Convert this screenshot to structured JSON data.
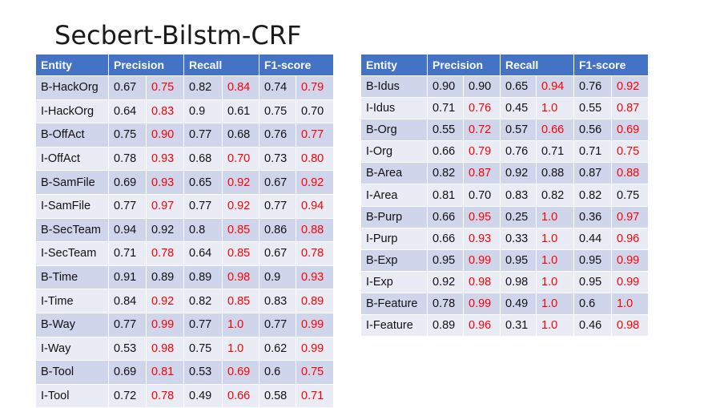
{
  "title": "Secbert-Bilstm-CRF",
  "colors": {
    "header": "#4472c4",
    "row_dark": "#cfd5ea",
    "row_light": "#e9ebf5",
    "highlight": "#ff0000"
  },
  "left_table": {
    "headers": [
      "Entity",
      "Precision",
      "Recall",
      "F1-score"
    ],
    "rows": [
      {
        "entity": "B-HackOrg",
        "values": [
          "0.67",
          "0.75",
          "0.82",
          "0.84",
          "0.74",
          "0.79"
        ],
        "highlight": [
          false,
          true,
          false,
          true,
          false,
          true
        ]
      },
      {
        "entity": "I-HackOrg",
        "values": [
          "0.64",
          "0.83",
          "0.9",
          "0.61",
          "0.75",
          "0.70"
        ],
        "highlight": [
          false,
          true,
          false,
          false,
          false,
          false
        ]
      },
      {
        "entity": "B-OffAct",
        "values": [
          "0.75",
          "0.90",
          "0.77",
          "0.68",
          "0.76",
          "0.77"
        ],
        "highlight": [
          false,
          true,
          false,
          false,
          false,
          true
        ]
      },
      {
        "entity": "I-OffAct",
        "values": [
          "0.78",
          "0.93",
          "0.68",
          "0.70",
          "0.73",
          "0.80"
        ],
        "highlight": [
          false,
          true,
          false,
          true,
          false,
          true
        ]
      },
      {
        "entity": "B-SamFile",
        "values": [
          "0.69",
          "0.93",
          "0.65",
          "0.92",
          "0.67",
          "0.92"
        ],
        "highlight": [
          false,
          true,
          false,
          true,
          false,
          true
        ]
      },
      {
        "entity": "I-SamFile",
        "values": [
          "0.77",
          "0.97",
          "0.77",
          "0.92",
          "0.77",
          "0.94"
        ],
        "highlight": [
          false,
          true,
          false,
          true,
          false,
          true
        ]
      },
      {
        "entity": "B-SecTeam",
        "values": [
          "0.94",
          "0.92",
          "0.8",
          "0.85",
          "0.86",
          "0.88"
        ],
        "highlight": [
          false,
          false,
          false,
          true,
          false,
          true
        ]
      },
      {
        "entity": "I-SecTeam",
        "values": [
          "0.71",
          "0.78",
          "0.64",
          "0.85",
          "0.67",
          "0.78"
        ],
        "highlight": [
          false,
          true,
          false,
          true,
          false,
          true
        ]
      },
      {
        "entity": "B-Time",
        "values": [
          "0.91",
          "0.89",
          "0.89",
          "0.98",
          "0.9",
          "0.93"
        ],
        "highlight": [
          false,
          false,
          false,
          true,
          false,
          true
        ]
      },
      {
        "entity": "I-Time",
        "values": [
          "0.84",
          "0.92",
          "0.82",
          "0.85",
          "0.83",
          "0.89"
        ],
        "highlight": [
          false,
          true,
          false,
          true,
          false,
          true
        ]
      },
      {
        "entity": "B-Way",
        "values": [
          "0.77",
          "0.99",
          "0.77",
          "1.0",
          "0.77",
          "0.99"
        ],
        "highlight": [
          false,
          true,
          false,
          true,
          false,
          true
        ]
      },
      {
        "entity": "I-Way",
        "values": [
          "0.53",
          "0.98",
          "0.75",
          "1.0",
          "0.62",
          "0.99"
        ],
        "highlight": [
          false,
          true,
          false,
          true,
          false,
          true
        ]
      },
      {
        "entity": "B-Tool",
        "values": [
          "0.69",
          "0.81",
          "0.53",
          "0.69",
          "0.6",
          "0.75"
        ],
        "highlight": [
          false,
          true,
          false,
          true,
          false,
          true
        ]
      },
      {
        "entity": "I-Tool",
        "values": [
          "0.72",
          "0.78",
          "0.49",
          "0.66",
          "0.58",
          "0.71"
        ],
        "highlight": [
          false,
          true,
          false,
          true,
          false,
          true
        ]
      }
    ]
  },
  "right_table": {
    "headers": [
      "Entity",
      "Precision",
      "Recall",
      "F1-score"
    ],
    "rows": [
      {
        "entity": "B-Idus",
        "values": [
          "0.90",
          "0.90",
          "0.65",
          "0.94",
          "0.76",
          "0.92"
        ],
        "highlight": [
          false,
          false,
          false,
          true,
          false,
          true
        ]
      },
      {
        "entity": "I-Idus",
        "values": [
          "0.71",
          "0.76",
          "0.45",
          "1.0",
          "0.55",
          "0.87"
        ],
        "highlight": [
          false,
          true,
          false,
          true,
          false,
          true
        ]
      },
      {
        "entity": "B-Org",
        "values": [
          "0.55",
          "0.72",
          "0.57",
          "0.66",
          "0.56",
          "0.69"
        ],
        "highlight": [
          false,
          true,
          false,
          true,
          false,
          true
        ]
      },
      {
        "entity": "I-Org",
        "values": [
          "0.66",
          "0.79",
          "0.76",
          "0.71",
          "0.71",
          "0.75"
        ],
        "highlight": [
          false,
          true,
          false,
          false,
          false,
          true
        ]
      },
      {
        "entity": "B-Area",
        "values": [
          "0.82",
          "0.87",
          "0.92",
          "0.88",
          "0.87",
          "0.88"
        ],
        "highlight": [
          false,
          true,
          false,
          false,
          false,
          true
        ]
      },
      {
        "entity": "I-Area",
        "values": [
          "0.81",
          "0.70",
          "0.83",
          "0.82",
          "0.82",
          "0.75"
        ],
        "highlight": [
          false,
          false,
          false,
          false,
          false,
          false
        ]
      },
      {
        "entity": "B-Purp",
        "values": [
          "0.66",
          "0.95",
          "0.25",
          "1.0",
          "0.36",
          "0.97"
        ],
        "highlight": [
          false,
          true,
          false,
          true,
          false,
          true
        ]
      },
      {
        "entity": "I-Purp",
        "values": [
          "0.66",
          "0.93",
          "0.33",
          "1.0",
          "0.44",
          "0.96"
        ],
        "highlight": [
          false,
          true,
          false,
          true,
          false,
          true
        ]
      },
      {
        "entity": "B-Exp",
        "values": [
          "0.95",
          "0.99",
          "0.95",
          "1.0",
          "0.95",
          "0.99"
        ],
        "highlight": [
          false,
          true,
          false,
          true,
          false,
          true
        ]
      },
      {
        "entity": "I-Exp",
        "values": [
          "0.92",
          "0.98",
          "0.98",
          "1.0",
          "0.95",
          "0.99"
        ],
        "highlight": [
          false,
          true,
          false,
          true,
          false,
          true
        ]
      },
      {
        "entity": "B-Feature",
        "values": [
          "0.78",
          "0.99",
          "0.49",
          "1.0",
          "0.6",
          "1.0"
        ],
        "highlight": [
          false,
          true,
          false,
          true,
          false,
          true
        ]
      },
      {
        "entity": "I-Feature",
        "values": [
          "0.89",
          "0.96",
          "0.31",
          "1.0",
          "0.46",
          "0.98"
        ],
        "highlight": [
          false,
          true,
          false,
          true,
          false,
          true
        ]
      }
    ]
  }
}
